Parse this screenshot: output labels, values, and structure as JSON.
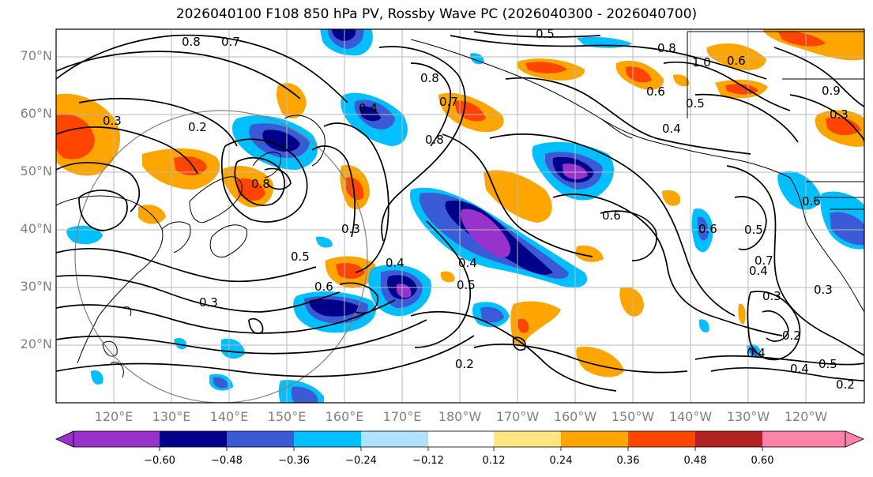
{
  "title": "2026040100 F108 850 hPa PV, Rossby Wave PC (2026040300 - 2026040700)",
  "map": {
    "lat_labels": [
      "70°N",
      "60°N",
      "50°N",
      "40°N",
      "30°N",
      "20°N"
    ],
    "lon_labels": [
      "120°E",
      "130°E",
      "140°E",
      "150°E",
      "160°E",
      "170°E",
      "180°W",
      "170°W",
      "160°W",
      "150°W",
      "140°W",
      "130°W",
      "120°W"
    ],
    "contour_labels": [
      "0.8",
      "0.7",
      "0.5",
      "0.8",
      "1.0",
      "0.6",
      "0.5",
      "0.4",
      "0.8",
      "0.3",
      "0.2",
      "0.8",
      "0.7",
      "0.4",
      "0.5",
      "0.6",
      "0.4",
      "0.3",
      "0.4",
      "0.5",
      "0.6",
      "0.3",
      "0.2",
      "0.6",
      "0.5",
      "0.4",
      "0.7",
      "0.3",
      "0.2",
      "0.4",
      "0.5",
      "0.2",
      "0.3",
      "0.4",
      "0.6",
      "0.9",
      "0.6",
      "0.8",
      "0.3"
    ]
  },
  "colorbar": {
    "ticks": [
      "−0.60",
      "−0.48",
      "−0.36",
      "−0.24",
      "−0.12",
      "0.12",
      "0.24",
      "0.36",
      "0.48",
      "0.60"
    ],
    "colors": [
      "#9932cc",
      "#00008b",
      "#3b5bd6",
      "#00bfff",
      "#b0e2ff",
      "#ffffff",
      "#ffe680",
      "#ffa500",
      "#ff4500",
      "#b22222",
      "#ff82ab"
    ]
  }
}
